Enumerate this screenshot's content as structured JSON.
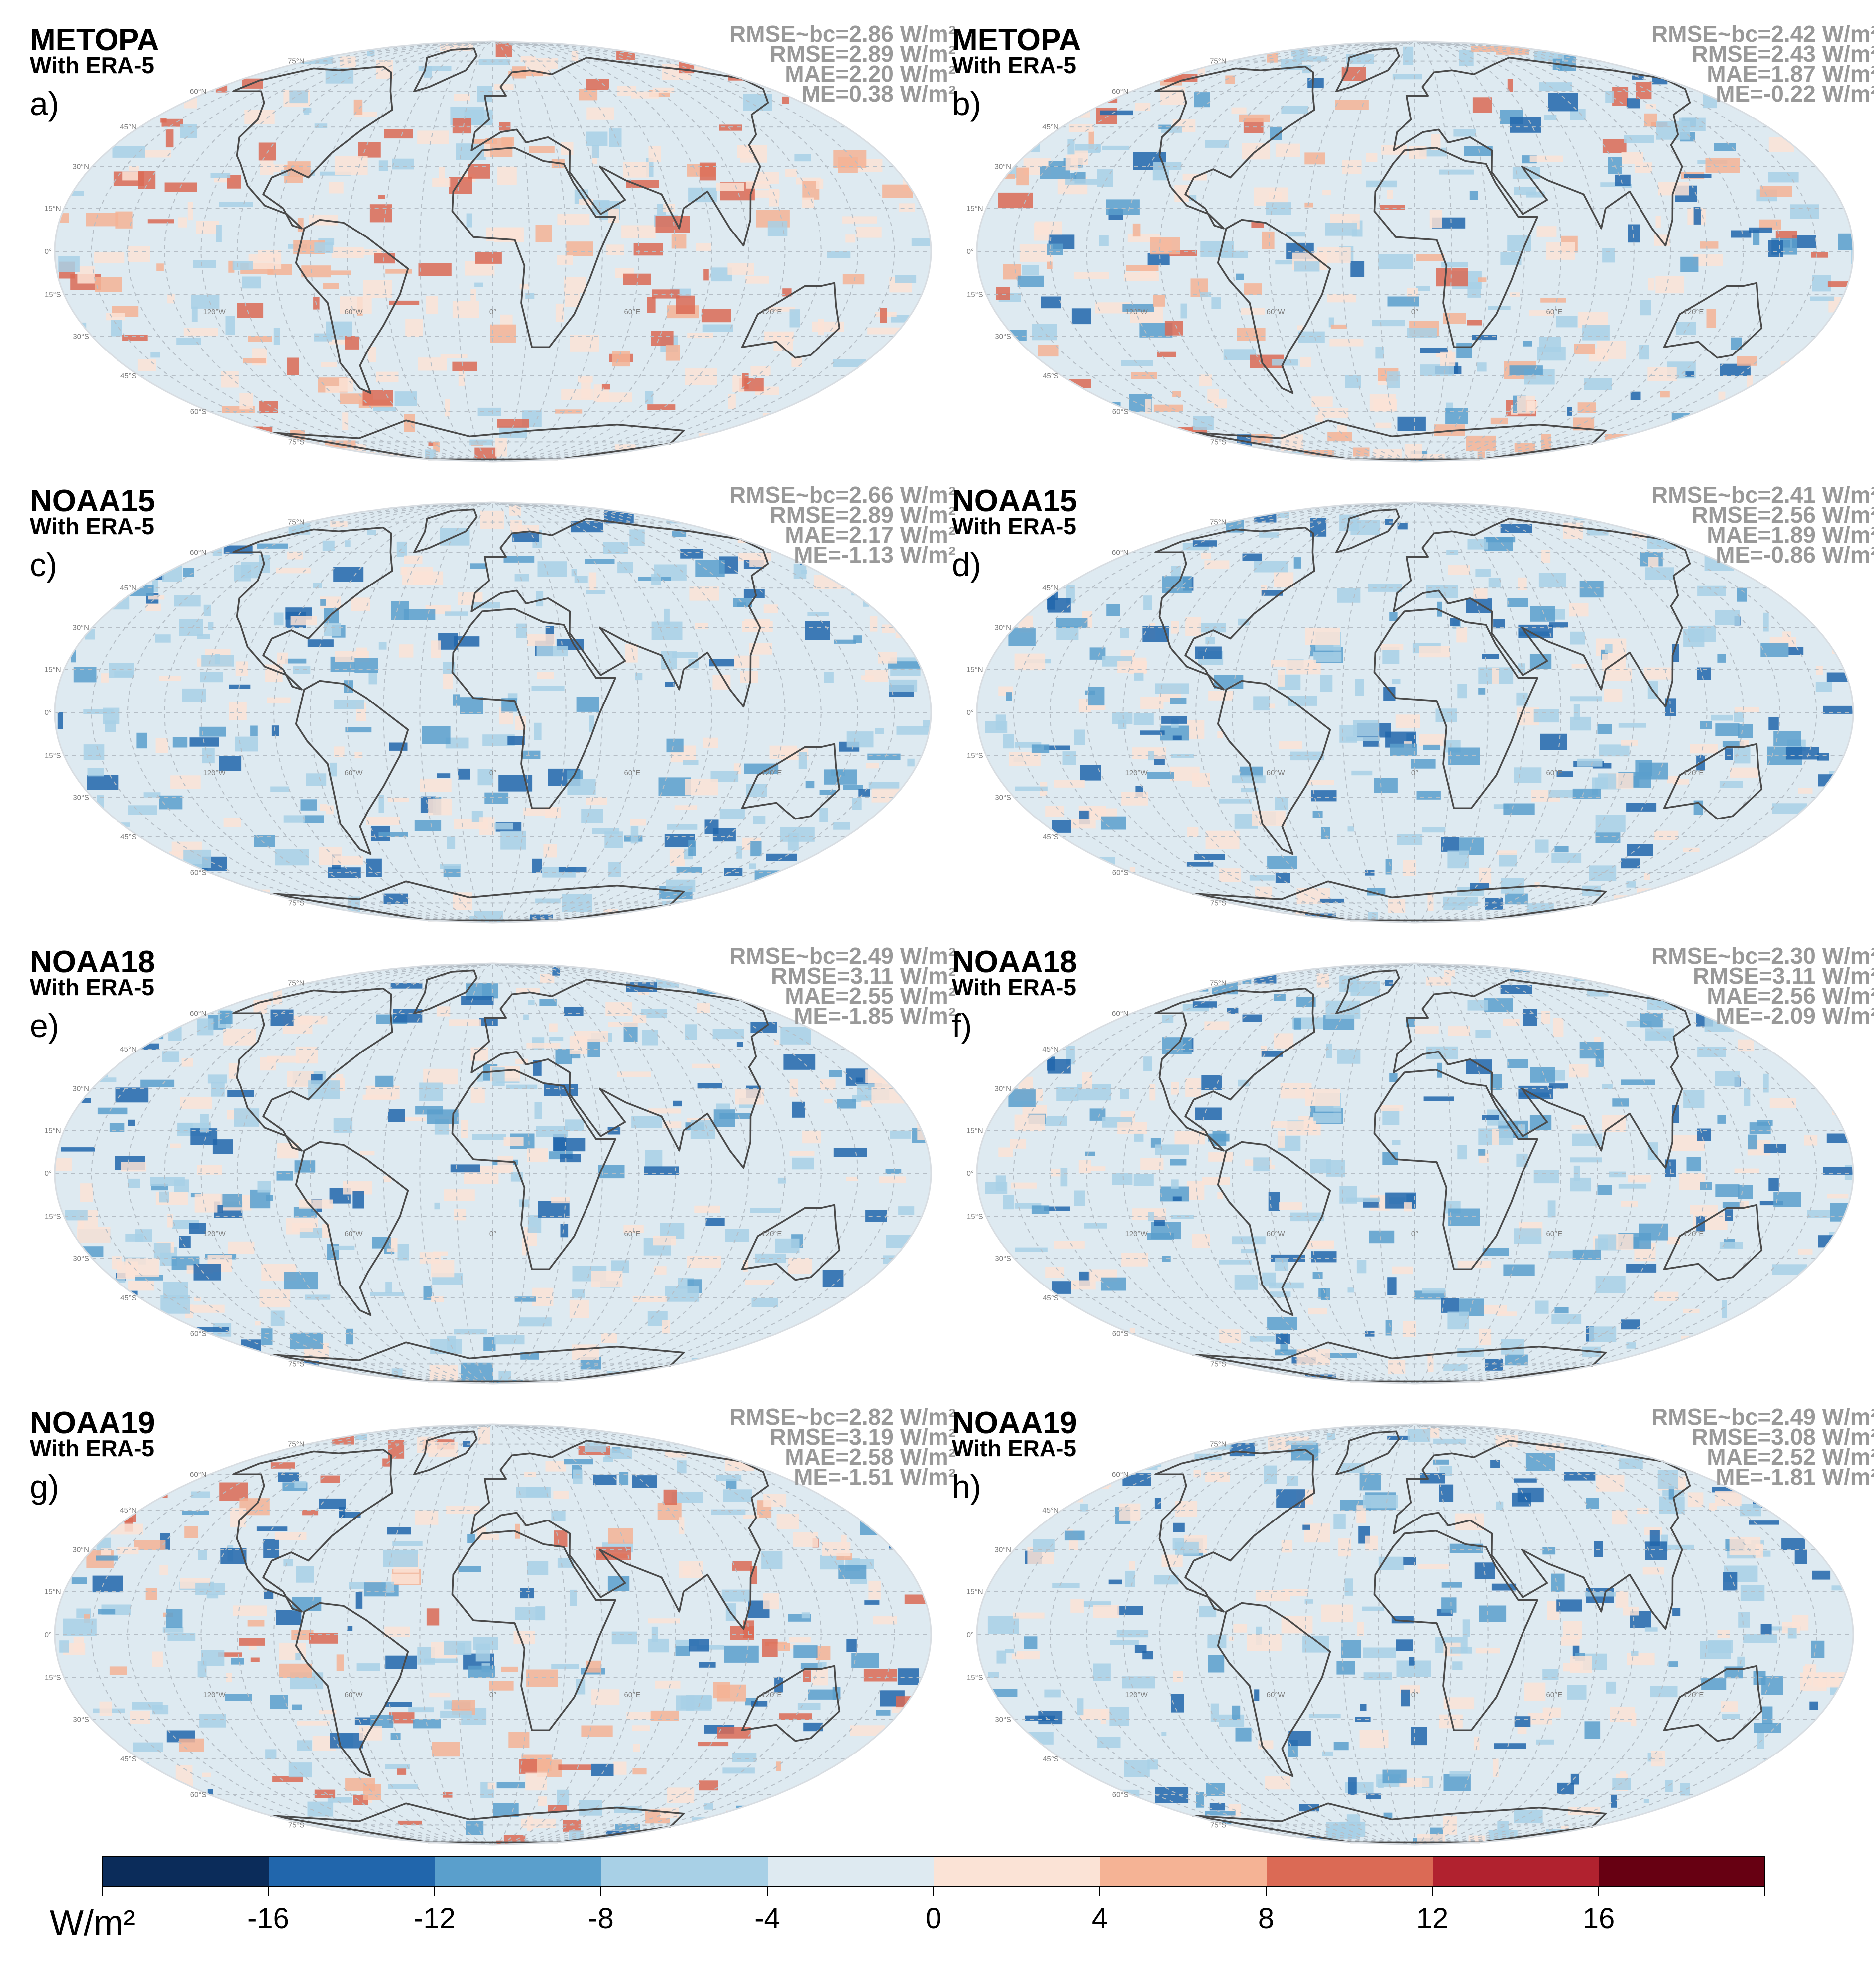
{
  "panels": [
    {
      "id": "a",
      "satellite": "METOPA",
      "subtitle": "With ERA-5",
      "label": "a)",
      "stats": [
        "RMSE~bc=2.86 W/m²",
        "RMSE=2.89 W/m²",
        "MAE=2.20 W/m²",
        "ME=0.38 W/m²"
      ],
      "dominant": "warm"
    },
    {
      "id": "b",
      "satellite": "METOPA",
      "subtitle": "With ERA-5",
      "label": "b)",
      "stats": [
        "RMSE~bc=2.42 W/m²",
        "RMSE=2.43 W/m²",
        "MAE=1.87 W/m²",
        "ME=-0.22 W/m²"
      ],
      "dominant": "mixed"
    },
    {
      "id": "c",
      "satellite": "NOAA15",
      "subtitle": "With ERA-5",
      "label": "c)",
      "stats": [
        "RMSE~bc=2.66 W/m²",
        "RMSE=2.89 W/m²",
        "MAE=2.17 W/m²",
        "ME=-1.13 W/m²"
      ],
      "dominant": "cool"
    },
    {
      "id": "d",
      "satellite": "NOAA15",
      "subtitle": "With ERA-5",
      "label": "d)",
      "stats": [
        "RMSE~bc=2.41 W/m²",
        "RMSE=2.56 W/m²",
        "MAE=1.89 W/m²",
        "ME=-0.86 W/m²"
      ],
      "dominant": "cool"
    },
    {
      "id": "e",
      "satellite": "NOAA18",
      "subtitle": "With ERA-5",
      "label": "e)",
      "stats": [
        "RMSE~bc=2.49 W/m²",
        "RMSE=3.11 W/m²",
        "MAE=2.55 W/m²",
        "ME=-1.85 W/m²"
      ],
      "dominant": "cool"
    },
    {
      "id": "f",
      "satellite": "NOAA18",
      "subtitle": "With ERA-5",
      "label": "f)",
      "stats": [
        "RMSE~bc=2.30 W/m²",
        "RMSE=3.11 W/m²",
        "MAE=2.56 W/m²",
        "ME=-2.09 W/m²"
      ],
      "dominant": "cool"
    },
    {
      "id": "g",
      "satellite": "NOAA19",
      "subtitle": "With ERA-5",
      "label": "g)",
      "stats": [
        "RMSE~bc=2.82 W/m²",
        "RMSE=3.19 W/m²",
        "MAE=2.58 W/m²",
        "ME=-1.51 W/m²"
      ],
      "dominant": "mixed"
    },
    {
      "id": "h",
      "satellite": "NOAA19",
      "subtitle": "With ERA-5",
      "label": "h)",
      "stats": [
        "RMSE~bc=2.49 W/m²",
        "RMSE=3.08 W/m²",
        "MAE=2.52 W/m²",
        "ME=-1.81 W/m²"
      ],
      "dominant": "cool"
    }
  ],
  "map": {
    "projection": "Mollweide",
    "lat_labels": [
      "75°N",
      "60°N",
      "45°N",
      "30°N",
      "15°N",
      "0°",
      "15°S",
      "30°S",
      "45°S",
      "60°S",
      "75°S"
    ],
    "lon_labels": [
      "120°W",
      "60°W",
      "0°",
      "60°E",
      "120°E"
    ]
  },
  "colorbar": {
    "unit": "W/m²",
    "tick_labels": [
      "-16",
      "-12",
      "-8",
      "-4",
      "0",
      "4",
      "8",
      "12",
      "16"
    ],
    "colors": [
      "#0b2c5a",
      "#2166ac",
      "#5a9fcc",
      "#a8d0e6",
      "#deeaf1",
      "#fbe3d6",
      "#f5b395",
      "#db6a55",
      "#b1222f",
      "#670012"
    ]
  }
}
